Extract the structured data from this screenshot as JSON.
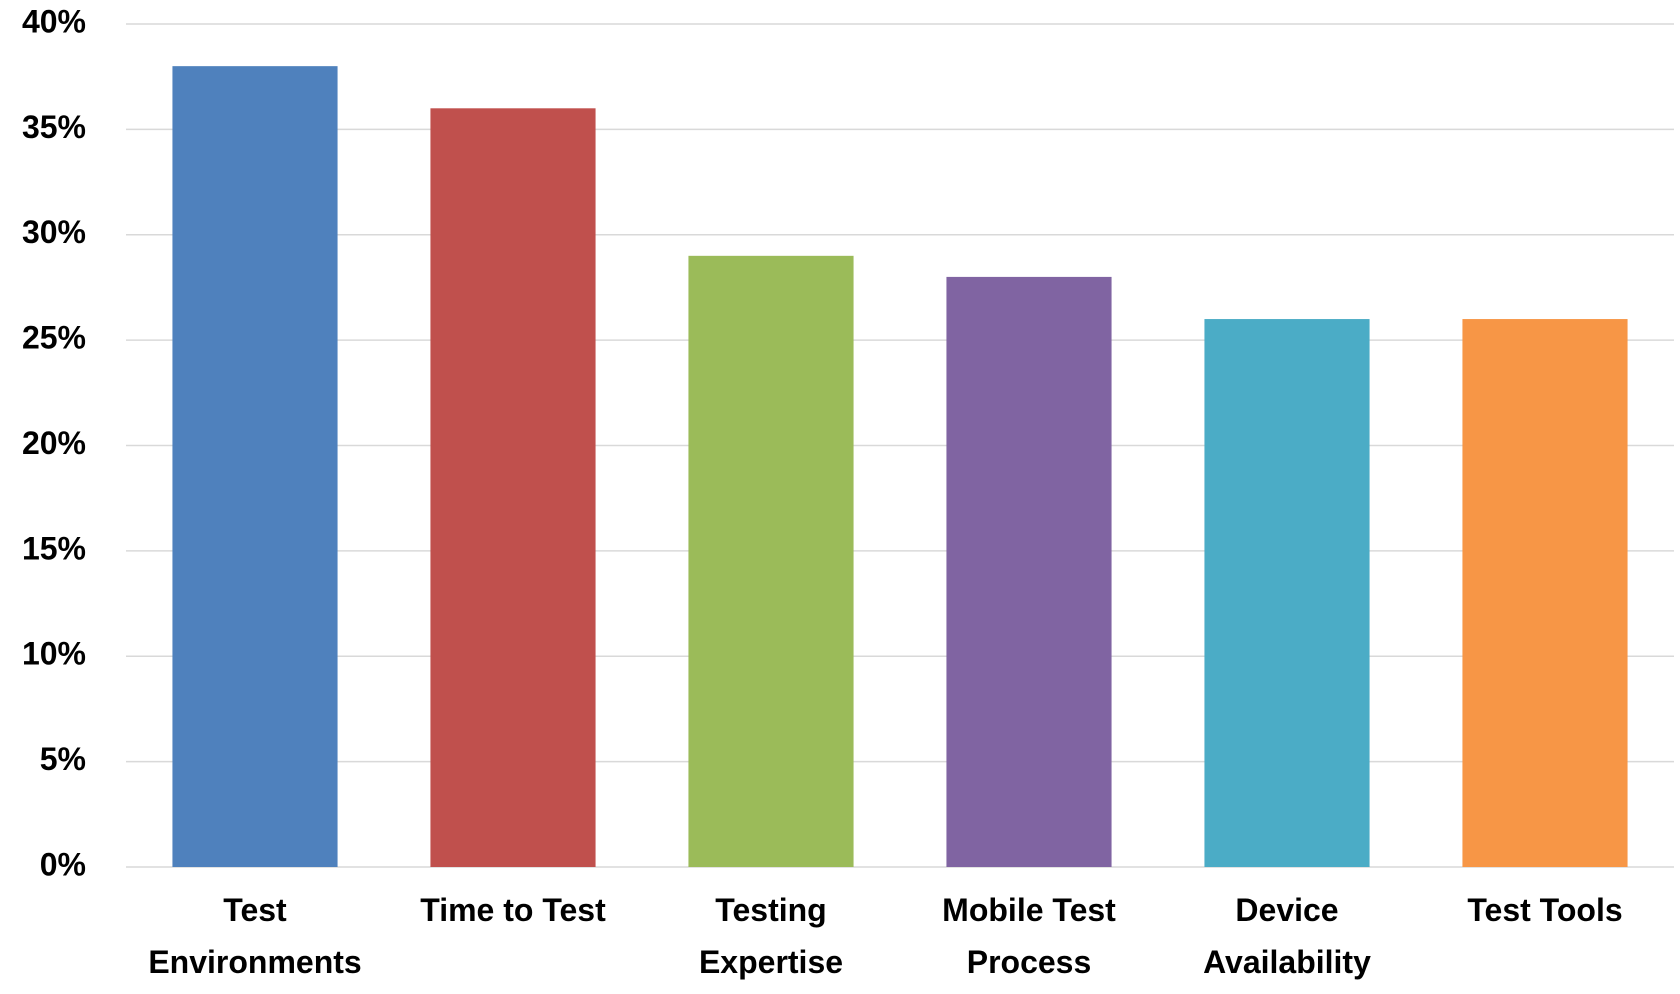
{
  "chart_data": {
    "type": "bar",
    "categories": [
      "Test Environments",
      "Time to Test",
      "Testing Expertise",
      "Mobile Test Process",
      "Device Availability",
      "Test Tools"
    ],
    "values": [
      38,
      36,
      29,
      28,
      26,
      26
    ],
    "colors": [
      "#4f81bd",
      "#c0504d",
      "#9bbb59",
      "#8064a2",
      "#4bacc6",
      "#f79646"
    ],
    "ylim": [
      0,
      40
    ],
    "yticks": [
      {
        "value": 0,
        "label": "0%"
      },
      {
        "value": 5,
        "label": "5%"
      },
      {
        "value": 10,
        "label": "10%"
      },
      {
        "value": 15,
        "label": "15%"
      },
      {
        "value": 20,
        "label": "20%"
      },
      {
        "value": 25,
        "label": "25%"
      },
      {
        "value": 30,
        "label": "30%"
      },
      {
        "value": 35,
        "label": "35%"
      },
      {
        "value": 40,
        "label": "40%"
      }
    ],
    "grid": true
  }
}
